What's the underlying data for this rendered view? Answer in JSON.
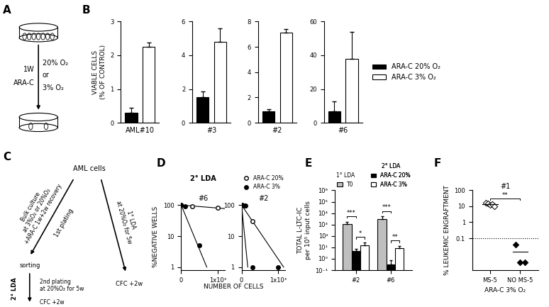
{
  "panel_A": {
    "label": "A",
    "texts_left": [
      "1W",
      "ARA-C"
    ],
    "texts_right": [
      "20% O₂",
      "or",
      "3% O₂"
    ]
  },
  "panel_C": {
    "label": "C",
    "top": "AML cells",
    "left_branch": "Bulk culture\nat 3%O₂ or 20%O₂\n+ARA-C 1w+2w recovery",
    "left_arrow_label": "1st plating",
    "right_branch": "1° LDA\nat 20%O₂ for 5w",
    "right_end": "CFC +2w",
    "sorting": "sorting",
    "second_lda": "2° LDA",
    "second_plating": "2nd plating\nat 20%O₂ for 5w",
    "second_end": "CFC +2w"
  },
  "chart_data": [
    {
      "type": "bar",
      "panel": "B",
      "xlabel": "AML#10",
      "ylabel": "VIABLE CELLS\n(% OF CONTROL)",
      "tick_labels": "y",
      "ylim": [
        0,
        3
      ],
      "yticks": [
        0,
        1,
        2,
        3
      ],
      "series": [
        {
          "name": "ARA-C 20% O₂",
          "color": "#000000",
          "values": [
            0.3
          ],
          "errors": [
            0.15
          ]
        },
        {
          "name": "ARA-C 3% O₂",
          "color": "#ffffff",
          "values": [
            2.25
          ],
          "errors": [
            0.12
          ]
        }
      ]
    },
    {
      "type": "bar",
      "xlabel": "#3",
      "tick_labels": "y",
      "ylim": [
        0,
        6
      ],
      "yticks": [
        0,
        2,
        4,
        6
      ],
      "series": [
        {
          "name": "ARA-C 20% O₂",
          "color": "#000000",
          "values": [
            1.5
          ],
          "errors": [
            0.35
          ]
        },
        {
          "name": "ARA-C 3% O₂",
          "color": "#ffffff",
          "values": [
            4.8
          ],
          "errors": [
            0.8
          ]
        }
      ]
    },
    {
      "type": "bar",
      "xlabel": "#2",
      "tick_labels": "y",
      "ylim": [
        0,
        8
      ],
      "yticks": [
        0,
        2,
        4,
        6,
        8
      ],
      "series": [
        {
          "name": "ARA-C 20% O₂",
          "color": "#000000",
          "values": [
            0.9
          ],
          "errors": [
            0.15
          ]
        },
        {
          "name": "ARA-C 3% O₂",
          "color": "#ffffff",
          "values": [
            7.1
          ],
          "errors": [
            0.3
          ]
        }
      ]
    },
    {
      "type": "bar",
      "xlabel": "#6",
      "tick_labels": "y",
      "ylim": [
        0,
        60
      ],
      "yticks": [
        0,
        20,
        40,
        60
      ],
      "legend": "center left",
      "series": [
        {
          "name": "ARA-C 20% O₂",
          "color": "#000000",
          "values": [
            7
          ],
          "errors": [
            5.5
          ]
        },
        {
          "name": "ARA-C 3% O₂",
          "color": "#ffffff",
          "values": [
            38
          ],
          "errors": [
            16
          ]
        }
      ]
    },
    {
      "type": "line",
      "panel": "D",
      "group_title": "2° LDA",
      "title": "#6",
      "xlabel": "NUMBER OF CELLS",
      "ylabel": "%NEGATIVE WELLS",
      "log": "y",
      "xlim": [
        0,
        1200
      ],
      "xticks": [
        0,
        {
          "value": 1000,
          "label": "1x10³"
        }
      ],
      "ylim": [
        0.8,
        120
      ],
      "yticks": [
        1,
        10,
        100
      ],
      "series": [
        {
          "name": "ARA-C 20%",
          "color": "#ffffff",
          "marker": "circle",
          "x": [
            0,
            300,
            1000
          ],
          "values": [
            100,
            90,
            80
          ],
          "fit": {
            "x": [
              0,
              1200
            ],
            "values": [
              100,
              77
            ]
          }
        },
        {
          "name": "ARA-C 3%",
          "color": "#000000",
          "marker": "circle",
          "x": [
            0,
            100,
            500
          ],
          "values": [
            100,
            90,
            5
          ],
          "fit": {
            "x": [
              0,
              700
            ],
            "values": [
              100,
              1
            ]
          }
        }
      ]
    },
    {
      "type": "line",
      "title": "#2",
      "log": "y",
      "legend": "lower center",
      "xlim": [
        0,
        1200
      ],
      "xticks": [
        0,
        {
          "value": 1000,
          "label": "1x10³"
        }
      ],
      "ylim": [
        0.8,
        120
      ],
      "yticks": [
        1,
        10,
        100
      ],
      "series": [
        {
          "name": "ARA-C 20%",
          "color": "#ffffff",
          "marker": "circle",
          "x": [
            0,
            100,
            300
          ],
          "values": [
            100,
            95,
            30
          ],
          "fit": {
            "x": [
              0,
              1150
            ],
            "values": [
              100,
              1
            ]
          }
        },
        {
          "name": "ARA-C 3%",
          "color": "#000000",
          "marker": "circle",
          "x": [
            0,
            80,
            300,
            1000
          ],
          "values": [
            100,
            95,
            1,
            1
          ],
          "fit": {
            "x": [
              0,
              170
            ],
            "values": [
              100,
              1
            ]
          }
        }
      ]
    },
    {
      "type": "bar",
      "panel": "E",
      "ylabel": "TOTAL L-LTC-IC\nper 10⁵ input cells",
      "categories": [
        "#2",
        "#6"
      ],
      "log": "y",
      "ylim": [
        0.1,
        1000000
      ],
      "yticks": [
        {
          "value": 0.1,
          "label": "10⁻¹"
        },
        {
          "value": 1,
          "label": "10⁰"
        },
        {
          "value": 10,
          "label": "10¹"
        },
        {
          "value": 100,
          "label": "10²"
        },
        {
          "value": 1000,
          "label": "10³"
        },
        {
          "value": 10000,
          "label": "10⁴"
        },
        {
          "value": 100000,
          "label": "10⁵"
        },
        {
          "value": 1000000,
          "label": "10⁶"
        }
      ],
      "series": [
        {
          "name": "T0",
          "group": "1° LDA",
          "color": "#bfbfbf",
          "values": [
            1100,
            3000
          ],
          "errors": [
            700,
            2000
          ]
        },
        {
          "name": "ARA-C 20%",
          "group": "2° LDA",
          "color": "#000000",
          "values": [
            5,
            0.3
          ],
          "errors": [
            2,
            0.4
          ]
        },
        {
          "name": "ARA-C 3%",
          "group": "2° LDA",
          "color": "#ffffff",
          "values": [
            15,
            9
          ],
          "errors": [
            12,
            4
          ]
        }
      ],
      "significance": [
        {
          "category": "#2",
          "pair": [
            "T0",
            "ARA-C 20%"
          ],
          "label": "***"
        },
        {
          "category": "#2",
          "pair": [
            "ARA-C 20%",
            "ARA-C 3%"
          ],
          "label": "*"
        },
        {
          "category": "#6",
          "pair": [
            "T0",
            "ARA-C 20%"
          ],
          "label": "***"
        },
        {
          "category": "#6",
          "pair": [
            "ARA-C 20%",
            "ARA-C 3%"
          ],
          "label": "**"
        }
      ]
    },
    {
      "type": "scatter",
      "panel": "F",
      "title": "#1",
      "xlabel": "ARA-C 3% O₂",
      "ylabel": "% LEUKEMIC ENGRAFTMENT",
      "categories": [
        "MS-5",
        "NO MS-5"
      ],
      "log": "y",
      "ylim": [
        0.001,
        100
      ],
      "yticks": [
        0.1,
        1,
        10,
        100
      ],
      "points": [
        [
          17,
          15,
          12,
          14,
          10
        ],
        [
          0.04,
          0.003,
          0.003
        ]
      ],
      "colors": [
        "#ffffff",
        "#000000"
      ],
      "marker": "diamond",
      "means": [
        14,
        0.015
      ],
      "reference_line": 0.1,
      "significance": [
        {
          "pair": [
            "MS-5",
            "NO MS-5"
          ],
          "label": "**"
        }
      ]
    }
  ]
}
